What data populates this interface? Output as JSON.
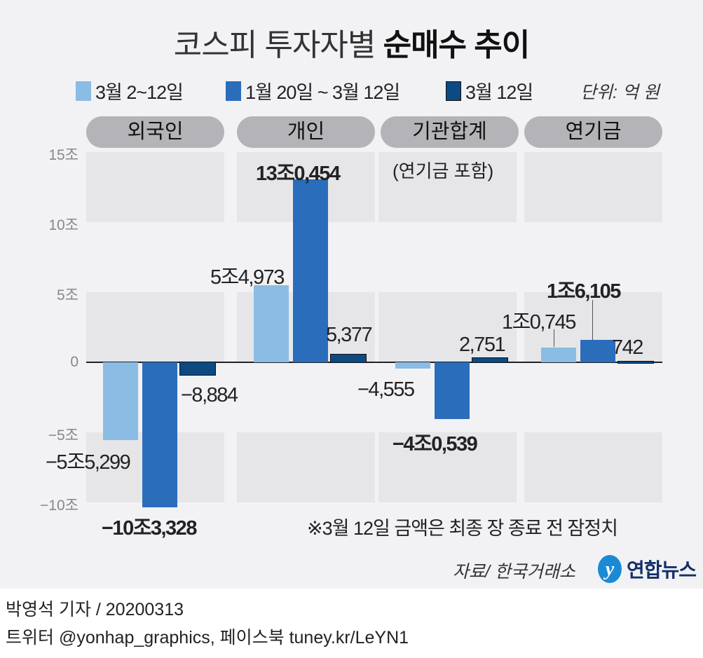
{
  "title_regular": "코스피 투자자별 ",
  "title_bold": "순매수 추이",
  "unit": "단위: 억 원",
  "colors": {
    "light": "#8bbce3",
    "mid": "#2a6dbb",
    "dark": "#0d4a82",
    "band": "#e6e6e9",
    "bg": "#f2f2f5"
  },
  "chart_data": {
    "type": "bar",
    "title": "코스피 투자자별 순매수 추이",
    "categories": [
      "외국인",
      "개인",
      "기관합계",
      "연기금"
    ],
    "category_note": "(연기금 포함)",
    "series": [
      {
        "name": "3월 2~12일",
        "values": [
          -55299,
          54973,
          -4555,
          10745
        ],
        "labels": [
          "−5조5,299",
          "5조4,973",
          "−4,555",
          "1조0,745"
        ]
      },
      {
        "name": "1월 20일 ~ 3월 12일",
        "values": [
          -103328,
          130454,
          -40539,
          16105
        ],
        "labels": [
          "−10조3,328",
          "13조0,454",
          "−4조0,539",
          "1조6,105"
        ]
      },
      {
        "name": "3월 12일",
        "values": [
          -8884,
          5377,
          2751,
          742
        ],
        "labels": [
          "−8,884",
          "5,377",
          "2,751",
          "742"
        ]
      }
    ],
    "ylabel": "억 원",
    "ylim": [
      -100000,
      150000
    ],
    "yticks": [
      {
        "v": 150000,
        "t": "15조"
      },
      {
        "v": 100000,
        "t": "10조"
      },
      {
        "v": 50000,
        "t": "5조"
      },
      {
        "v": 0,
        "t": "0"
      },
      {
        "v": -50000,
        "t": "−5조"
      },
      {
        "v": -100000,
        "t": "−10조"
      }
    ],
    "legend": "top",
    "grid": "banded"
  },
  "note": "※3월 12일 금액은 최종 장 종료 전 잠정치",
  "source": "자료/ 한국거래소",
  "logo": "연합뉴스",
  "footer": {
    "line1": "박영석 기자 /  20200313",
    "line2": "트위터 @yonhap_graphics, 페이스북 tuney.kr/LeYN1"
  }
}
